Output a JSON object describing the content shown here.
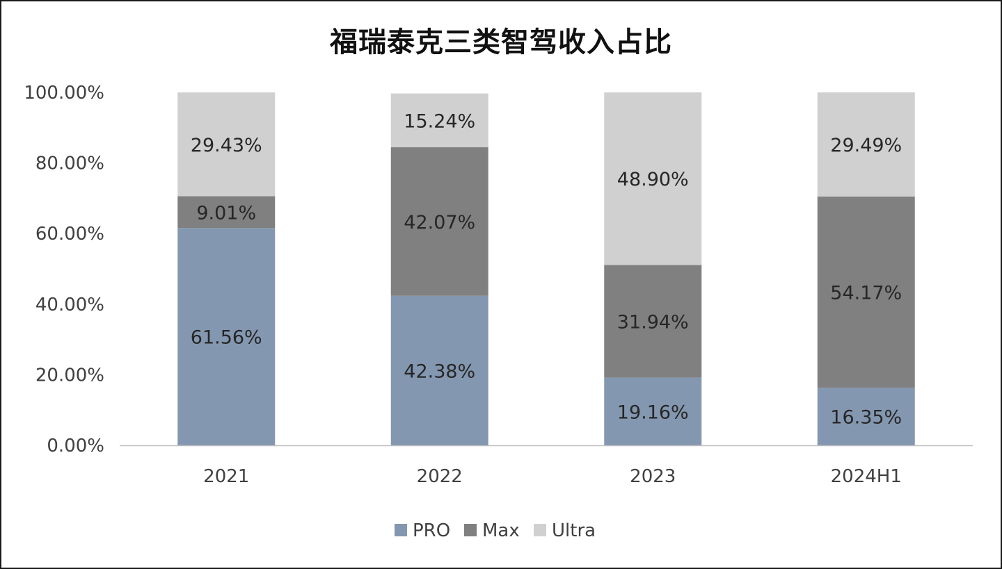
{
  "chart_data": {
    "type": "bar",
    "stacked": true,
    "title": "福瑞泰克三类智驾收入占比",
    "categories": [
      "2021",
      "2022",
      "2023",
      "2024H1"
    ],
    "series": [
      {
        "name": "PRO",
        "color": "#8497b0",
        "values": [
          61.56,
          42.38,
          19.16,
          16.35
        ],
        "labels": [
          "61.56%",
          "42.38%",
          "19.16%",
          "16.35%"
        ]
      },
      {
        "name": "Max",
        "color": "#808080",
        "values": [
          9.01,
          42.07,
          31.94,
          54.17
        ],
        "labels": [
          "9.01%",
          "42.07%",
          "31.94%",
          "54.17%"
        ]
      },
      {
        "name": "Ultra",
        "color": "#d0d0d0",
        "values": [
          29.43,
          15.24,
          48.9,
          29.49
        ],
        "labels": [
          "29.43%",
          "15.24%",
          "48.90%",
          "29.49%"
        ]
      }
    ],
    "ylim": [
      0,
      100
    ],
    "yticks": [
      "0.00%",
      "20.00%",
      "40.00%",
      "60.00%",
      "80.00%",
      "100.00%"
    ],
    "grid": false,
    "legend_position": "bottom"
  }
}
